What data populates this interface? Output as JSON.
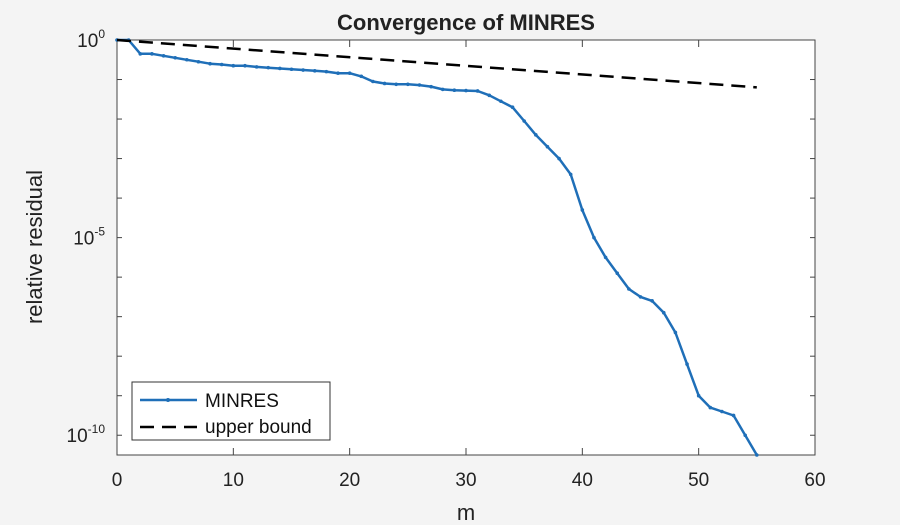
{
  "chart_data": {
    "type": "line",
    "title": "Convergence of MINRES",
    "xlabel": "m",
    "ylabel": "relative residual",
    "xlim": [
      0,
      60
    ],
    "ylim_exponent": [
      -10.5,
      0
    ],
    "yscale": "log",
    "x_ticks": [
      "0",
      "10",
      "20",
      "30",
      "40",
      "50",
      "60"
    ],
    "y_ticks": [
      {
        "base": "10",
        "exp": "0"
      },
      {
        "base": "10",
        "exp": "-5"
      },
      {
        "base": "10",
        "exp": "-10"
      }
    ],
    "legend_position": "bottom-left",
    "grid": false,
    "series": [
      {
        "name": "MINRES",
        "color": "#1f6fb8",
        "style": "solid-with-dots",
        "x": [
          0,
          1,
          2,
          3,
          4,
          5,
          6,
          7,
          8,
          9,
          10,
          11,
          12,
          13,
          14,
          15,
          16,
          17,
          18,
          19,
          20,
          21,
          22,
          23,
          24,
          25,
          26,
          27,
          28,
          29,
          30,
          31,
          32,
          33,
          34,
          35,
          36,
          37,
          38,
          39,
          40,
          41,
          42,
          43,
          44,
          45,
          46,
          47,
          48,
          49,
          50,
          51,
          52,
          53,
          54,
          55
        ],
        "log10_y": [
          0,
          0,
          -0.35,
          -0.35,
          -0.4,
          -0.45,
          -0.5,
          -0.55,
          -0.6,
          -0.62,
          -0.65,
          -0.65,
          -0.68,
          -0.7,
          -0.72,
          -0.74,
          -0.76,
          -0.78,
          -0.8,
          -0.84,
          -0.84,
          -0.92,
          -1.05,
          -1.1,
          -1.12,
          -1.12,
          -1.14,
          -1.18,
          -1.25,
          -1.27,
          -1.28,
          -1.29,
          -1.4,
          -1.55,
          -1.7,
          -2.05,
          -2.4,
          -2.7,
          -3.0,
          -3.4,
          -4.3,
          -5.0,
          -5.5,
          -5.9,
          -6.3,
          -6.5,
          -6.6,
          -6.9,
          -7.4,
          -8.2,
          -9.0,
          -9.3,
          -9.4,
          -9.5,
          -10.0,
          -10.5
        ]
      },
      {
        "name": "upper bound",
        "color": "#000000",
        "style": "dashed",
        "x": [
          0,
          55
        ],
        "log10_y": [
          0,
          -1.2
        ]
      }
    ]
  }
}
